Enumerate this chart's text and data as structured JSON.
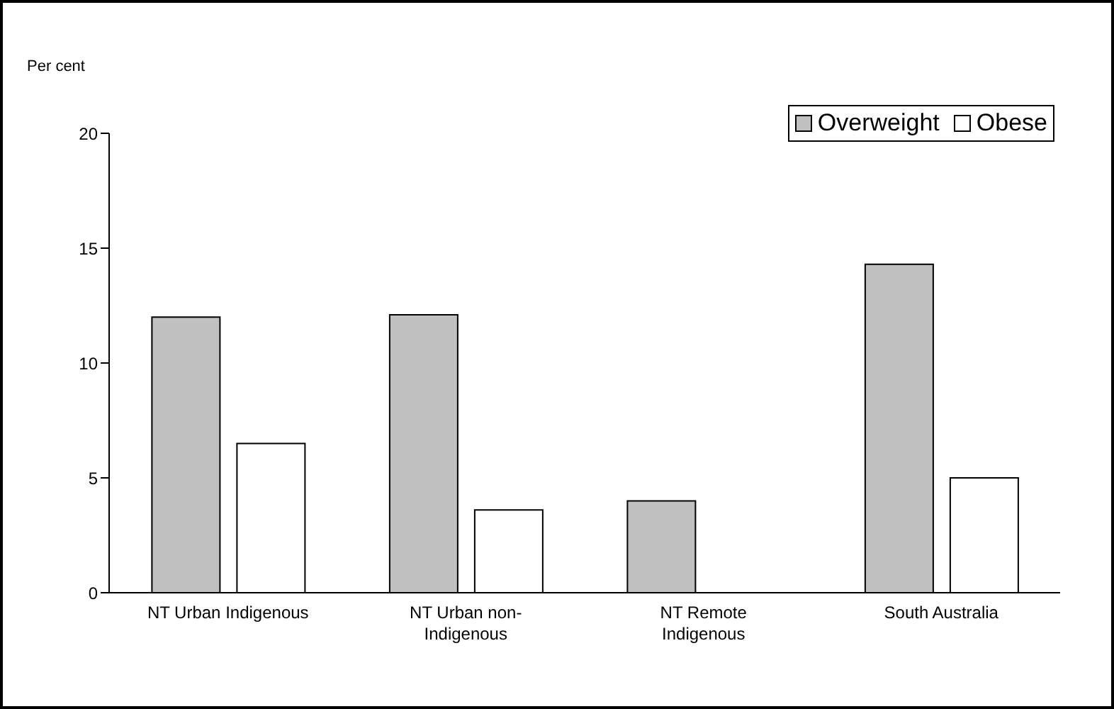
{
  "chart_data": {
    "type": "bar",
    "ylabel": "Per cent",
    "categories": [
      "NT Urban Indigenous",
      "NT Urban non-Indigenous",
      "NT Remote Indigenous",
      "South Australia"
    ],
    "series": [
      {
        "name": "Overweight",
        "color": "#c0c0c0",
        "values": [
          12.0,
          12.1,
          4.0,
          14.3
        ]
      },
      {
        "name": "Obese",
        "color": "#ffffff",
        "values": [
          6.5,
          3.6,
          null,
          5.0
        ]
      }
    ],
    "ylim": [
      0,
      20
    ],
    "yticks": [
      0,
      5,
      10,
      15,
      20
    ],
    "grid": false,
    "legend": "top right"
  }
}
